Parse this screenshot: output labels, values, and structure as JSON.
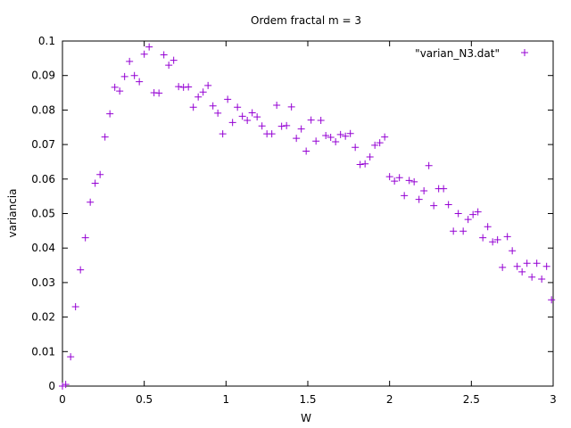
{
  "chart_data": {
    "type": "scatter",
    "title": "Ordem fractal m = 3",
    "xlabel": "W",
    "ylabel": "variancia",
    "xlim": [
      0,
      3
    ],
    "ylim": [
      0,
      0.1
    ],
    "x_ticks": [
      0,
      0.5,
      1,
      1.5,
      2,
      2.5,
      3
    ],
    "x_tick_labels": [
      "0",
      "0.5",
      "1",
      "1.5",
      "2",
      "2.5",
      "3"
    ],
    "y_ticks": [
      0,
      0.01,
      0.02,
      0.03,
      0.04,
      0.05,
      0.06,
      0.07,
      0.08,
      0.09,
      0.1
    ],
    "y_tick_labels": [
      "0",
      "0.01",
      "0.02",
      "0.03",
      "0.04",
      "0.05",
      "0.06",
      "0.07",
      "0.08",
      "0.09",
      "0.1"
    ],
    "grid": false,
    "legend_position": "top-right",
    "series": [
      {
        "name": "\"varian_N3.dat\"",
        "color": "#9400d3",
        "marker": "plus",
        "x": [
          0.0,
          0.02,
          0.05,
          0.08,
          0.11,
          0.14,
          0.17,
          0.2,
          0.23,
          0.26,
          0.29,
          0.32,
          0.35,
          0.38,
          0.41,
          0.44,
          0.47,
          0.5,
          0.53,
          0.56,
          0.59,
          0.62,
          0.65,
          0.68,
          0.71,
          0.74,
          0.77,
          0.8,
          0.83,
          0.86,
          0.89,
          0.92,
          0.95,
          0.98,
          1.01,
          1.04,
          1.07,
          1.1,
          1.13,
          1.16,
          1.19,
          1.22,
          1.25,
          1.28,
          1.31,
          1.34,
          1.37,
          1.4,
          1.43,
          1.46,
          1.49,
          1.52,
          1.55,
          1.58,
          1.61,
          1.64,
          1.67,
          1.7,
          1.73,
          1.76,
          1.79,
          1.82,
          1.85,
          1.88,
          1.91,
          1.94,
          1.97,
          2.0,
          2.03,
          2.06,
          2.09,
          2.12,
          2.15,
          2.18,
          2.21,
          2.24,
          2.27,
          2.3,
          2.33,
          2.36,
          2.39,
          2.42,
          2.45,
          2.48,
          2.51,
          2.54,
          2.57,
          2.6,
          2.63,
          2.66,
          2.69,
          2.72,
          2.75,
          2.78,
          2.81,
          2.84,
          2.87,
          2.9,
          2.93,
          2.96,
          2.99
        ],
        "y": [
          0.0,
          0.0005,
          0.0085,
          0.023,
          0.0337,
          0.043,
          0.0533,
          0.0588,
          0.0613,
          0.0722,
          0.0789,
          0.0866,
          0.0855,
          0.0897,
          0.0941,
          0.09,
          0.0882,
          0.0962,
          0.0983,
          0.085,
          0.0849,
          0.096,
          0.093,
          0.0944,
          0.0868,
          0.0866,
          0.0867,
          0.0808,
          0.0838,
          0.0852,
          0.0871,
          0.0812,
          0.0791,
          0.0731,
          0.0831,
          0.0764,
          0.0808,
          0.0782,
          0.077,
          0.0792,
          0.078,
          0.0754,
          0.0731,
          0.0731,
          0.0814,
          0.0753,
          0.0755,
          0.0809,
          0.0718,
          0.0745,
          0.0681,
          0.0771,
          0.071,
          0.077,
          0.0726,
          0.0721,
          0.0708,
          0.0729,
          0.0724,
          0.0732,
          0.0692,
          0.0642,
          0.0644,
          0.0664,
          0.0698,
          0.0705,
          0.0722,
          0.0607,
          0.0594,
          0.0604,
          0.0552,
          0.0596,
          0.0592,
          0.0541,
          0.0566,
          0.0639,
          0.0523,
          0.0572,
          0.0572,
          0.0526,
          0.0449,
          0.05,
          0.0449,
          0.0483,
          0.0497,
          0.0505,
          0.043,
          0.0462,
          0.0418,
          0.0424,
          0.0344,
          0.0433,
          0.0392,
          0.0347,
          0.0331,
          0.0356,
          0.0316,
          0.0356,
          0.031,
          0.0347,
          0.025
        ]
      }
    ]
  }
}
